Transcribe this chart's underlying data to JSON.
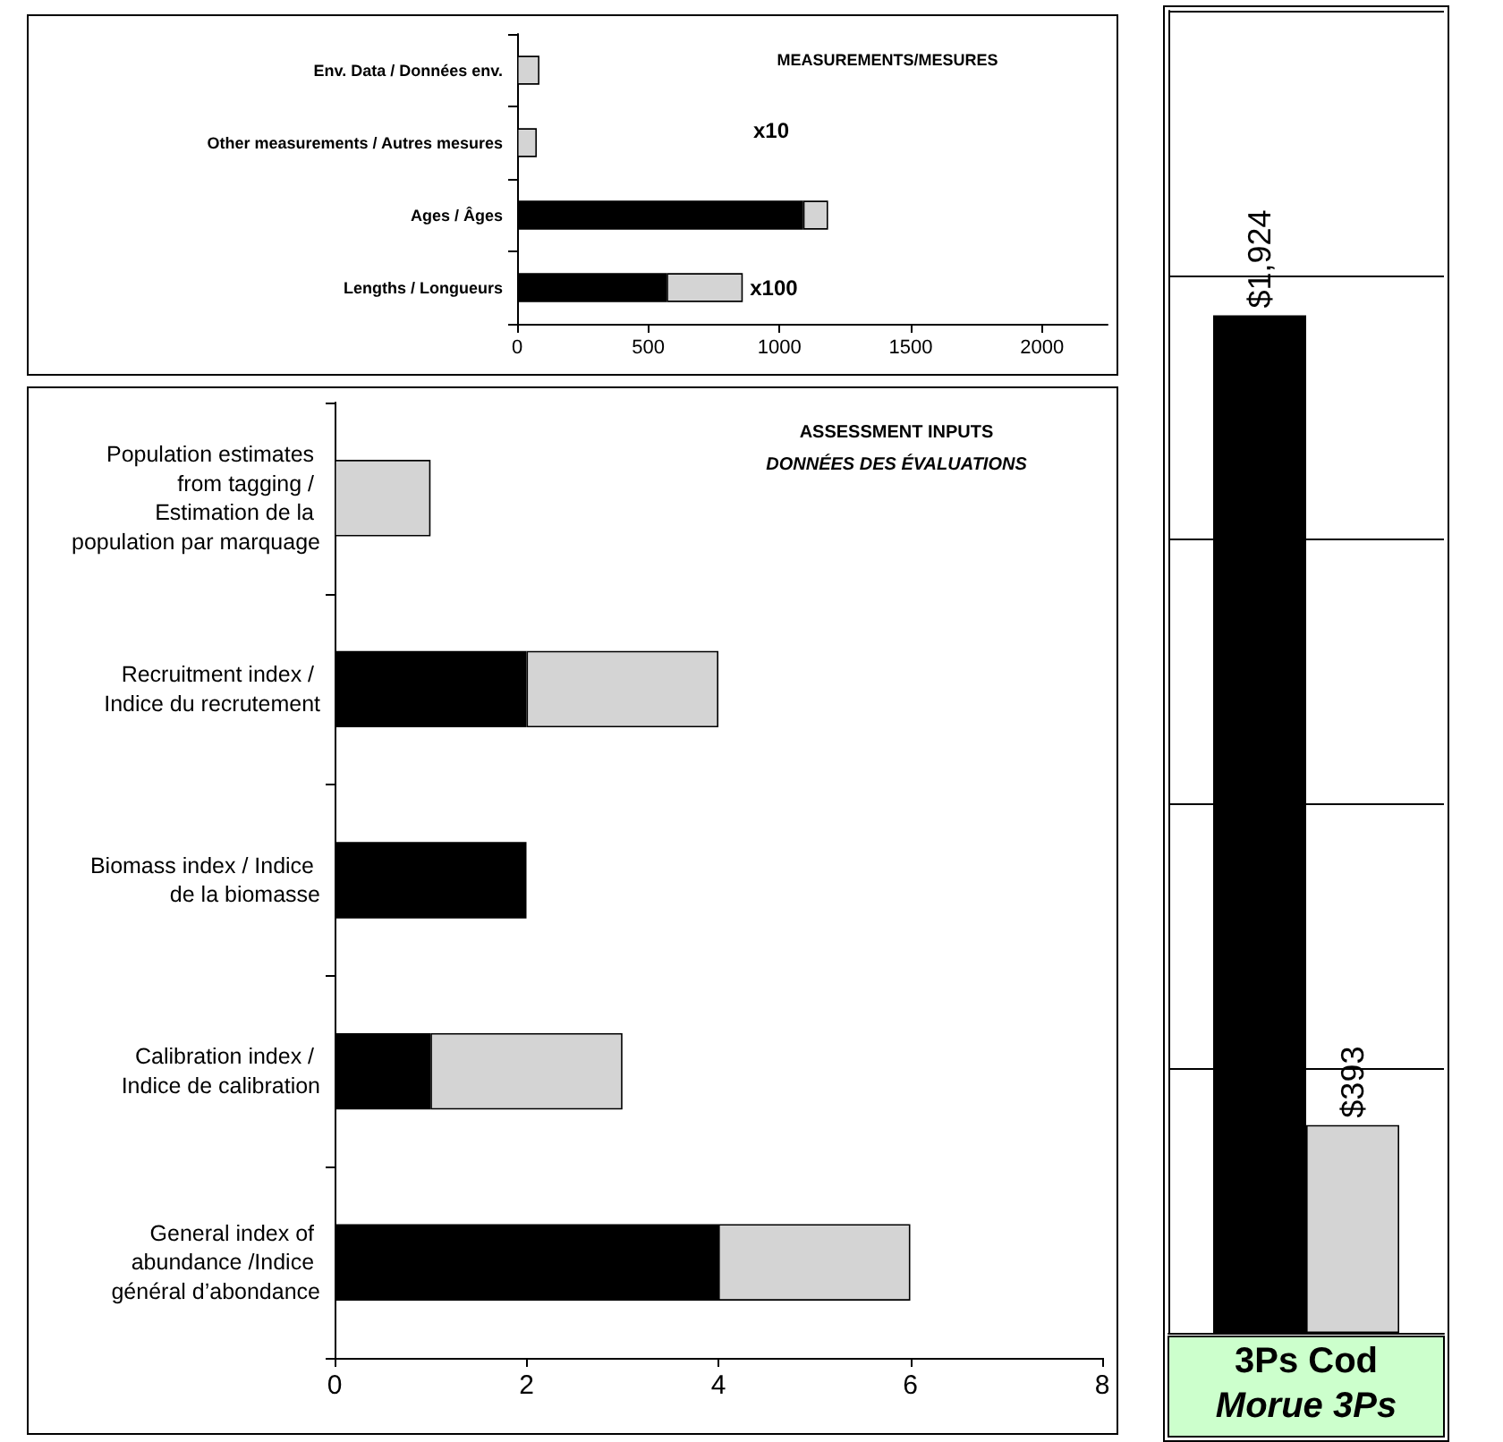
{
  "chart_data": [
    {
      "type": "bar",
      "orientation": "horizontal",
      "stacked": true,
      "categories": [
        "Env. Data / Données env.",
        "Other measurements / Autres mesures",
        "Ages / Âges",
        "Lengths / Longueurs"
      ],
      "series": [
        {
          "color": "#000000",
          "values": [
            0,
            0,
            1090,
            570
          ]
        },
        {
          "color": "#d4d4d4",
          "values": [
            85,
            75,
            95,
            290
          ]
        }
      ],
      "xlim": [
        0,
        2250
      ],
      "xticks": [
        0,
        500,
        1000,
        1500,
        2000
      ],
      "annotations": [
        "MEASUREMENTS/MESURES",
        "x10",
        {
          "text": "x100",
          "x": 860,
          "y": "Lengths / Longueurs"
        }
      ]
    },
    {
      "type": "bar",
      "orientation": "horizontal",
      "stacked": true,
      "categories": [
        "Population estimates from tagging / Estimation de la population par marquage",
        "Recruitment index / Indice du recrutement",
        "Biomass index / Indice de la biomasse",
        "Calibration index / Indice de calibration",
        "General index of abundance /Indice général d’abondance"
      ],
      "series": [
        {
          "color": "#000000",
          "values": [
            0,
            2,
            2,
            1,
            4
          ]
        },
        {
          "color": "#d4d4d4",
          "values": [
            1,
            2,
            0,
            2,
            2
          ]
        }
      ],
      "xlim": [
        0,
        8
      ],
      "xticks": [
        0,
        2,
        4,
        6,
        8
      ],
      "annotations": [
        "ASSESSMENT INPUTS",
        "DONNÉES DES ÉVALUATIONS"
      ]
    },
    {
      "type": "bar",
      "categories": [
        null
      ],
      "series": [
        {
          "color": "#000000",
          "values": [
            1924
          ],
          "value_labels": [
            "$1,924"
          ]
        },
        {
          "color": "#d4d4d4",
          "values": [
            393
          ],
          "value_labels": [
            "$393"
          ]
        }
      ],
      "ylim": [
        0,
        2500
      ],
      "yticks": [
        {
          "value": 0,
          "label": null
        },
        {
          "value": 500,
          "label": null
        },
        {
          "value": 1000,
          "label": null
        },
        {
          "value": 1500,
          "label": null
        },
        {
          "value": 2000,
          "label": null
        },
        {
          "value": 2500,
          "label": null
        }
      ],
      "grid": "y",
      "tick_labels": false,
      "xlabel": "3Ps Cod\nMorue 3Ps"
    }
  ]
}
